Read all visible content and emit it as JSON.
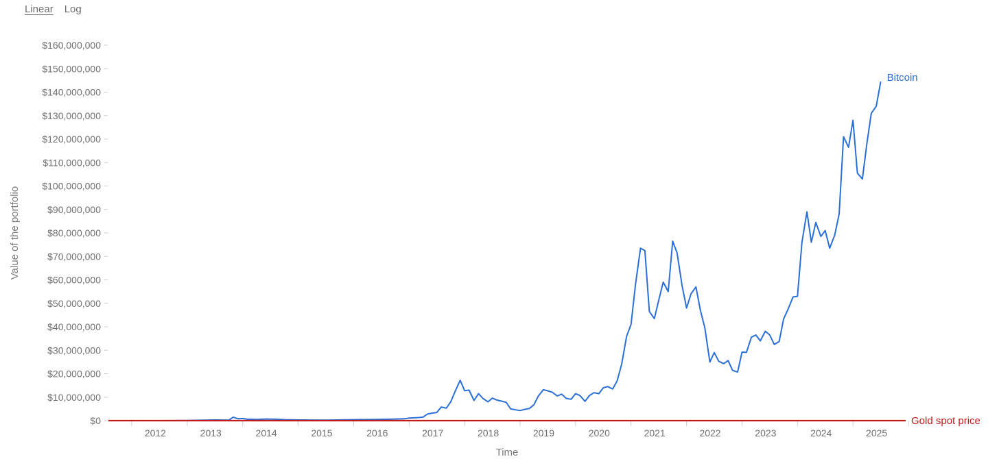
{
  "scale_toggle": {
    "options": [
      "Linear",
      "Log"
    ],
    "selected": "Linear"
  },
  "chart_data": {
    "type": "line",
    "xlabel": "Time",
    "ylabel": "Value of the portfolio",
    "ylim": [
      0,
      160000000
    ],
    "xlim": [
      2011.58,
      2025.95
    ],
    "yticks": [
      {
        "value": 0,
        "label": "$0"
      },
      {
        "value": 10000000,
        "label": "$10,000,000"
      },
      {
        "value": 20000000,
        "label": "$20,000,000"
      },
      {
        "value": 30000000,
        "label": "$30,000,000"
      },
      {
        "value": 40000000,
        "label": "$40,000,000"
      },
      {
        "value": 50000000,
        "label": "$50,000,000"
      },
      {
        "value": 60000000,
        "label": "$60,000,000"
      },
      {
        "value": 70000000,
        "label": "$70,000,000"
      },
      {
        "value": 80000000,
        "label": "$80,000,000"
      },
      {
        "value": 90000000,
        "label": "$90,000,000"
      },
      {
        "value": 100000000,
        "label": "$100,000,000"
      },
      {
        "value": 110000000,
        "label": "$110,000,000"
      },
      {
        "value": 120000000,
        "label": "$120,000,000"
      },
      {
        "value": 130000000,
        "label": "$130,000,000"
      },
      {
        "value": 140000000,
        "label": "$140,000,000"
      },
      {
        "value": 150000000,
        "label": "$150,000,000"
      },
      {
        "value": 160000000,
        "label": "$160,000,000"
      }
    ],
    "xticks": [
      "2012",
      "2013",
      "2014",
      "2015",
      "2016",
      "2017",
      "2018",
      "2019",
      "2020",
      "2021",
      "2022",
      "2023",
      "2024",
      "2025"
    ],
    "colors": {
      "bitcoin": "#2a6fd6",
      "gold": "#c41a1a",
      "axis": "#cccccc",
      "text": "#6e6e6e"
    },
    "series": [
      {
        "name": "Bitcoin",
        "color": "#2a6fd6",
        "points": [
          [
            2011.58,
            0
          ],
          [
            2012.0,
            0
          ],
          [
            2012.5,
            0
          ],
          [
            2013.0,
            50000
          ],
          [
            2013.5,
            300000
          ],
          [
            2013.75,
            200000
          ],
          [
            2013.83,
            1500000
          ],
          [
            2013.92,
            800000
          ],
          [
            2014.0,
            900000
          ],
          [
            2014.08,
            600000
          ],
          [
            2014.25,
            500000
          ],
          [
            2014.42,
            700000
          ],
          [
            2014.58,
            600000
          ],
          [
            2014.75,
            400000
          ],
          [
            2015.0,
            300000
          ],
          [
            2015.5,
            200000
          ],
          [
            2016.0,
            400000
          ],
          [
            2016.42,
            500000
          ],
          [
            2016.67,
            600000
          ],
          [
            2016.92,
            800000
          ],
          [
            2017.0,
            1100000
          ],
          [
            2017.17,
            1300000
          ],
          [
            2017.25,
            1500000
          ],
          [
            2017.33,
            2800000
          ],
          [
            2017.42,
            3200000
          ],
          [
            2017.5,
            3500000
          ],
          [
            2017.58,
            5800000
          ],
          [
            2017.67,
            5300000
          ],
          [
            2017.75,
            8000000
          ],
          [
            2017.83,
            12500000
          ],
          [
            2017.92,
            17200000
          ],
          [
            2018.0,
            12800000
          ],
          [
            2018.08,
            13000000
          ],
          [
            2018.17,
            8600000
          ],
          [
            2018.25,
            11500000
          ],
          [
            2018.33,
            9500000
          ],
          [
            2018.42,
            8000000
          ],
          [
            2018.5,
            9600000
          ],
          [
            2018.58,
            8800000
          ],
          [
            2018.67,
            8300000
          ],
          [
            2018.75,
            7800000
          ],
          [
            2018.83,
            5000000
          ],
          [
            2018.92,
            4600000
          ],
          [
            2019.0,
            4300000
          ],
          [
            2019.08,
            4800000
          ],
          [
            2019.17,
            5200000
          ],
          [
            2019.25,
            6800000
          ],
          [
            2019.33,
            10500000
          ],
          [
            2019.42,
            13200000
          ],
          [
            2019.5,
            12700000
          ],
          [
            2019.58,
            12100000
          ],
          [
            2019.67,
            10500000
          ],
          [
            2019.75,
            11300000
          ],
          [
            2019.83,
            9500000
          ],
          [
            2019.92,
            9100000
          ],
          [
            2020.0,
            11500000
          ],
          [
            2020.08,
            10700000
          ],
          [
            2020.17,
            8200000
          ],
          [
            2020.25,
            10700000
          ],
          [
            2020.33,
            11900000
          ],
          [
            2020.42,
            11500000
          ],
          [
            2020.5,
            14000000
          ],
          [
            2020.58,
            14500000
          ],
          [
            2020.67,
            13500000
          ],
          [
            2020.75,
            17000000
          ],
          [
            2020.83,
            24000000
          ],
          [
            2020.92,
            36000000
          ],
          [
            2021.0,
            41000000
          ],
          [
            2021.08,
            58000000
          ],
          [
            2021.17,
            73500000
          ],
          [
            2021.25,
            72500000
          ],
          [
            2021.33,
            46500000
          ],
          [
            2021.42,
            43500000
          ],
          [
            2021.5,
            51500000
          ],
          [
            2021.58,
            59000000
          ],
          [
            2021.67,
            55000000
          ],
          [
            2021.75,
            76500000
          ],
          [
            2021.83,
            71500000
          ],
          [
            2021.92,
            57500000
          ],
          [
            2022.0,
            48000000
          ],
          [
            2022.08,
            54000000
          ],
          [
            2022.17,
            57000000
          ],
          [
            2022.25,
            47000000
          ],
          [
            2022.33,
            39500000
          ],
          [
            2022.42,
            25000000
          ],
          [
            2022.5,
            29000000
          ],
          [
            2022.58,
            25300000
          ],
          [
            2022.67,
            24300000
          ],
          [
            2022.75,
            25600000
          ],
          [
            2022.83,
            21400000
          ],
          [
            2022.92,
            20700000
          ],
          [
            2023.0,
            29200000
          ],
          [
            2023.08,
            29100000
          ],
          [
            2023.17,
            35600000
          ],
          [
            2023.25,
            36500000
          ],
          [
            2023.33,
            34000000
          ],
          [
            2023.42,
            38100000
          ],
          [
            2023.5,
            36500000
          ],
          [
            2023.58,
            32500000
          ],
          [
            2023.67,
            33700000
          ],
          [
            2023.75,
            43400000
          ],
          [
            2023.83,
            47500000
          ],
          [
            2023.92,
            52700000
          ],
          [
            2024.0,
            53000000
          ],
          [
            2024.08,
            76000000
          ],
          [
            2024.17,
            89000000
          ],
          [
            2024.25,
            76000000
          ],
          [
            2024.33,
            84500000
          ],
          [
            2024.42,
            78500000
          ],
          [
            2024.5,
            81000000
          ],
          [
            2024.58,
            73500000
          ],
          [
            2024.67,
            79000000
          ],
          [
            2024.75,
            88000000
          ],
          [
            2024.83,
            121000000
          ],
          [
            2024.92,
            116500000
          ],
          [
            2025.0,
            128000000
          ],
          [
            2025.08,
            105500000
          ],
          [
            2025.17,
            103000000
          ],
          [
            2025.25,
            118000000
          ],
          [
            2025.33,
            131000000
          ],
          [
            2025.42,
            134000000
          ],
          [
            2025.5,
            144500000
          ]
        ]
      },
      {
        "name": "Gold spot price",
        "color": "#c41a1a",
        "points": [
          [
            2011.58,
            0
          ],
          [
            2025.5,
            0
          ],
          [
            2025.95,
            0
          ]
        ]
      }
    ]
  }
}
